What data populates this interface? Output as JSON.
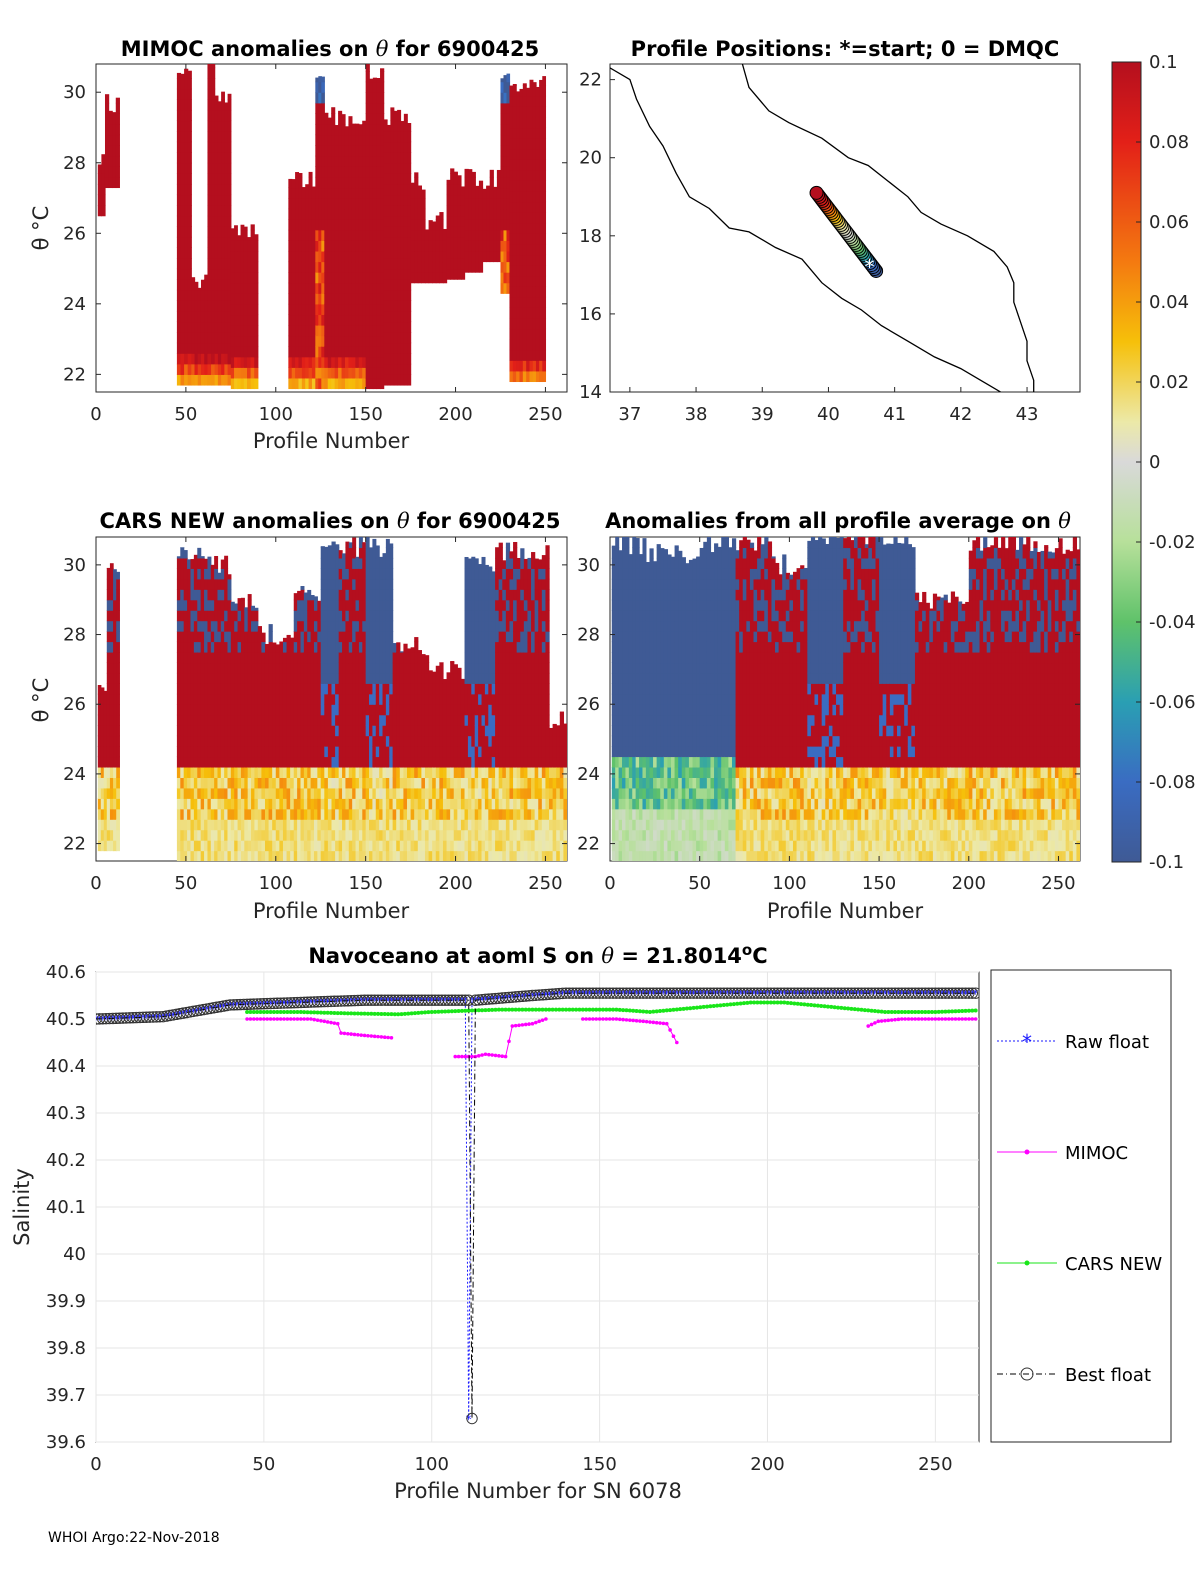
{
  "footer": "WHOI Argo:22-Nov-2018",
  "colors": {
    "pos": "#b40f1e",
    "neg": "#3f5a95",
    "zero": "#d9d9d9",
    "raw": "#1a1aff",
    "mimoc": "#ff00ff",
    "cars": "#19e619",
    "best": "#000000"
  },
  "chart_data": [
    {
      "id": "mimoc",
      "type": "heatmap",
      "title_prefix": "MIMOC anomalies on ",
      "title_symbol": "θ",
      "title_suffix": "  for 6900425",
      "xlabel": "Profile Number",
      "ylabel": "θ °C",
      "xlim": [
        0,
        262
      ],
      "ylim": [
        21.5,
        30.8
      ],
      "xticks": [
        0,
        50,
        100,
        150,
        200,
        250
      ],
      "yticks": [
        22,
        24,
        26,
        28,
        30
      ],
      "columns": [
        {
          "x0": 1,
          "x1": 5,
          "tmin": 26.5,
          "tmax": 28.0,
          "mode": "warm"
        },
        {
          "x0": 5,
          "x1": 13,
          "tmin": 27.3,
          "tmax": 29.7,
          "mode": "warm"
        },
        {
          "x0": 45,
          "x1": 53,
          "tmin": 21.7,
          "tmax": 30.6,
          "mode": "warmbase"
        },
        {
          "x0": 53,
          "x1": 62,
          "tmin": 21.7,
          "tmax": 24.7,
          "mode": "warmbase"
        },
        {
          "x0": 62,
          "x1": 66,
          "tmin": 21.7,
          "tmax": 30.8,
          "mode": "warmbase"
        },
        {
          "x0": 66,
          "x1": 75,
          "tmin": 21.7,
          "tmax": 30.0,
          "mode": "warmbase"
        },
        {
          "x0": 75,
          "x1": 84,
          "tmin": 21.6,
          "tmax": 26.2,
          "mode": "warmbase"
        },
        {
          "x0": 84,
          "x1": 90,
          "tmin": 21.6,
          "tmax": 26.0,
          "mode": "warmbase"
        },
        {
          "x0": 107,
          "x1": 122,
          "tmin": 21.6,
          "tmax": 27.5,
          "mode": "warmbase"
        },
        {
          "x0": 122,
          "x1": 127,
          "tmin": 21.6,
          "tmax": 30.3,
          "mode": "mixed"
        },
        {
          "x0": 127,
          "x1": 150,
          "tmin": 21.6,
          "tmax": 29.3,
          "mode": "warmbase"
        },
        {
          "x0": 150,
          "x1": 160,
          "tmin": 21.6,
          "tmax": 30.5,
          "mode": "warm"
        },
        {
          "x0": 160,
          "x1": 175,
          "tmin": 21.7,
          "tmax": 29.3,
          "mode": "warm"
        },
        {
          "x0": 175,
          "x1": 183,
          "tmin": 24.6,
          "tmax": 27.5,
          "mode": "warm"
        },
        {
          "x0": 183,
          "x1": 195,
          "tmin": 24.6,
          "tmax": 26.4,
          "mode": "warm"
        },
        {
          "x0": 195,
          "x1": 205,
          "tmin": 24.7,
          "tmax": 27.6,
          "mode": "warm"
        },
        {
          "x0": 205,
          "x1": 215,
          "tmin": 24.9,
          "tmax": 27.6,
          "mode": "warm"
        },
        {
          "x0": 215,
          "x1": 225,
          "tmin": 25.2,
          "tmax": 27.5,
          "mode": "warm"
        },
        {
          "x0": 225,
          "x1": 230,
          "tmin": 24.3,
          "tmax": 30.6,
          "mode": "mixed"
        },
        {
          "x0": 230,
          "x1": 243,
          "tmin": 21.8,
          "tmax": 30.2,
          "mode": "warmbase"
        },
        {
          "x0": 243,
          "x1": 250,
          "tmin": 21.8,
          "tmax": 30.4,
          "mode": "warmbase"
        }
      ]
    },
    {
      "id": "positions",
      "type": "scatter",
      "title": "Profile Positions: *=start; 0 = DMQC",
      "xlim": [
        36.7,
        43.8
      ],
      "ylim": [
        14,
        22.4
      ],
      "xticks": [
        37,
        38,
        39,
        40,
        41,
        42,
        43
      ],
      "yticks": [
        14,
        16,
        18,
        20,
        22
      ],
      "start": [
        40.62,
        17.2
      ],
      "track": {
        "lon0": 39.82,
        "lat0": 19.1,
        "lon1": 40.72,
        "lat1": 17.1,
        "n": 40
      },
      "coast_west": [
        [
          36.7,
          22.3
        ],
        [
          37.0,
          22.0
        ],
        [
          37.1,
          21.5
        ],
        [
          37.3,
          20.8
        ],
        [
          37.5,
          20.3
        ],
        [
          37.7,
          19.6
        ],
        [
          37.9,
          19.0
        ],
        [
          38.2,
          18.7
        ],
        [
          38.5,
          18.2
        ],
        [
          38.8,
          18.1
        ],
        [
          39.2,
          17.7
        ],
        [
          39.6,
          17.4
        ],
        [
          39.9,
          16.8
        ],
        [
          40.2,
          16.4
        ],
        [
          40.5,
          16.1
        ],
        [
          40.8,
          15.7
        ],
        [
          41.2,
          15.3
        ],
        [
          41.6,
          14.9
        ],
        [
          42.0,
          14.6
        ],
        [
          42.4,
          14.2
        ],
        [
          42.6,
          14.0
        ]
      ],
      "coast_east": [
        [
          38.7,
          22.4
        ],
        [
          38.8,
          21.8
        ],
        [
          39.1,
          21.2
        ],
        [
          39.4,
          20.9
        ],
        [
          39.9,
          20.5
        ],
        [
          40.3,
          20.0
        ],
        [
          40.6,
          19.8
        ],
        [
          40.9,
          19.4
        ],
        [
          41.2,
          19.0
        ],
        [
          41.4,
          18.6
        ],
        [
          41.7,
          18.3
        ],
        [
          42.1,
          18.0
        ],
        [
          42.5,
          17.6
        ],
        [
          42.7,
          17.2
        ],
        [
          42.8,
          16.8
        ],
        [
          42.8,
          16.3
        ],
        [
          42.9,
          15.8
        ],
        [
          43.0,
          15.3
        ],
        [
          43.0,
          14.8
        ],
        [
          43.1,
          14.3
        ],
        [
          43.1,
          14.0
        ]
      ]
    },
    {
      "id": "cars",
      "type": "heatmap",
      "title_prefix": "CARS NEW anomalies on ",
      "title_symbol": "θ",
      "title_suffix": " for 6900425",
      "xlabel": "Profile Number",
      "ylabel": "θ °C",
      "xlim": [
        0,
        262
      ],
      "ylim": [
        21.5,
        30.8
      ],
      "xticks": [
        0,
        50,
        100,
        150,
        200,
        250
      ],
      "yticks": [
        22,
        24,
        26,
        28,
        30
      ],
      "columns": [
        {
          "x0": 1,
          "x1": 6,
          "tmin": 21.8,
          "tmax": 26.6,
          "mode": "strat"
        },
        {
          "x0": 6,
          "x1": 13,
          "tmin": 21.8,
          "tmax": 29.8,
          "mode": "strat"
        },
        {
          "x0": 45,
          "x1": 62,
          "tmin": 21.5,
          "tmax": 30.3,
          "mode": "strat"
        },
        {
          "x0": 62,
          "x1": 75,
          "tmin": 21.5,
          "tmax": 30.0,
          "mode": "strat"
        },
        {
          "x0": 75,
          "x1": 90,
          "tmin": 21.5,
          "tmax": 29.0,
          "mode": "strat"
        },
        {
          "x0": 90,
          "x1": 110,
          "tmin": 21.5,
          "tmax": 28.0,
          "mode": "strat"
        },
        {
          "x0": 110,
          "x1": 125,
          "tmin": 21.5,
          "tmax": 29.2,
          "mode": "strat"
        },
        {
          "x0": 125,
          "x1": 135,
          "tmin": 21.5,
          "tmax": 30.4,
          "mode": "bluetop"
        },
        {
          "x0": 135,
          "x1": 150,
          "tmin": 21.5,
          "tmax": 30.5,
          "mode": "strat"
        },
        {
          "x0": 150,
          "x1": 165,
          "tmin": 21.5,
          "tmax": 30.5,
          "mode": "bluetop"
        },
        {
          "x0": 165,
          "x1": 185,
          "tmin": 21.5,
          "tmax": 27.7,
          "mode": "strat"
        },
        {
          "x0": 185,
          "x1": 205,
          "tmin": 21.5,
          "tmax": 27.0,
          "mode": "strat"
        },
        {
          "x0": 205,
          "x1": 222,
          "tmin": 21.5,
          "tmax": 30.0,
          "mode": "bluetop"
        },
        {
          "x0": 222,
          "x1": 240,
          "tmin": 21.5,
          "tmax": 30.4,
          "mode": "strat"
        },
        {
          "x0": 240,
          "x1": 252,
          "tmin": 21.5,
          "tmax": 30.4,
          "mode": "strat"
        },
        {
          "x0": 252,
          "x1": 262,
          "tmin": 21.5,
          "tmax": 25.6,
          "mode": "strat"
        }
      ]
    },
    {
      "id": "allavg",
      "type": "heatmap",
      "title_prefix": "Anomalies from all profile average on ",
      "title_symbol": "θ",
      "title_suffix": "",
      "xlabel": "Profile Number",
      "ylabel": "",
      "xlim": [
        0,
        262
      ],
      "ylim": [
        21.5,
        30.8
      ],
      "xticks": [
        0,
        50,
        100,
        150,
        200,
        250
      ],
      "yticks": [
        22,
        24,
        26,
        28,
        30
      ],
      "columns": [
        {
          "x0": 1,
          "x1": 20,
          "tmin": 21.5,
          "tmax": 30.6,
          "mode": "cool"
        },
        {
          "x0": 20,
          "x1": 50,
          "tmin": 21.5,
          "tmax": 30.3,
          "mode": "cool"
        },
        {
          "x0": 50,
          "x1": 70,
          "tmin": 21.5,
          "tmax": 30.6,
          "mode": "cool"
        },
        {
          "x0": 70,
          "x1": 90,
          "tmin": 21.5,
          "tmax": 30.7,
          "mode": "strat"
        },
        {
          "x0": 90,
          "x1": 110,
          "tmin": 21.5,
          "tmax": 30.0,
          "mode": "strat"
        },
        {
          "x0": 110,
          "x1": 130,
          "tmin": 21.5,
          "tmax": 30.7,
          "mode": "bluetop"
        },
        {
          "x0": 130,
          "x1": 150,
          "tmin": 21.5,
          "tmax": 30.7,
          "mode": "strat"
        },
        {
          "x0": 150,
          "x1": 170,
          "tmin": 21.5,
          "tmax": 30.7,
          "mode": "bluetop"
        },
        {
          "x0": 170,
          "x1": 200,
          "tmin": 21.5,
          "tmax": 29.0,
          "mode": "strat"
        },
        {
          "x0": 200,
          "x1": 230,
          "tmin": 21.5,
          "tmax": 30.7,
          "mode": "strat"
        },
        {
          "x0": 230,
          "x1": 262,
          "tmin": 21.5,
          "tmax": 30.6,
          "mode": "strat"
        }
      ]
    },
    {
      "id": "salinity",
      "type": "line",
      "title_prefix": "Navoceano at aoml S on ",
      "title_symbol": "θ",
      "title_mid": " = 21.8014",
      "title_sup": "o",
      "title_end": "C",
      "xlabel": "Profile Number for SN 6078",
      "ylabel": "Salinity",
      "xlim": [
        0,
        263
      ],
      "ylim": [
        39.6,
        40.6
      ],
      "xticks": [
        0,
        50,
        100,
        150,
        200,
        250
      ],
      "yticks": [
        39.6,
        39.7,
        39.8,
        39.9,
        40,
        40.1,
        40.2,
        40.3,
        40.4,
        40.5,
        40.6
      ],
      "ytick_labels": [
        "39.6",
        "39.7",
        "39.8",
        "39.9",
        "40",
        "40.1",
        "40.2",
        "40.3",
        "40.4",
        "40.5",
        "40.6"
      ],
      "series": [
        {
          "name": "Raw float",
          "style": "raw",
          "points": [
            [
              0,
              40.5
            ],
            [
              20,
              40.505
            ],
            [
              40,
              40.53
            ],
            [
              60,
              40.535
            ],
            [
              80,
              40.54
            ],
            [
              100,
              40.54
            ],
            [
              110,
              40.54
            ],
            [
              111,
              39.65
            ],
            [
              112,
              40.54
            ],
            [
              130,
              40.55
            ],
            [
              140,
              40.555
            ],
            [
              160,
              40.555
            ],
            [
              200,
              40.555
            ],
            [
              230,
              40.555
            ],
            [
              262,
              40.555
            ]
          ]
        },
        {
          "name": "MIMOC",
          "style": "mimoc",
          "segments": [
            [
              [
                45,
                40.5
              ],
              [
                55,
                40.5
              ],
              [
                64,
                40.5
              ],
              [
                72,
                40.49
              ],
              [
                73,
                40.47
              ],
              [
                80,
                40.465
              ],
              [
                88,
                40.46
              ]
            ],
            [
              [
                107,
                40.42
              ],
              [
                113,
                40.42
              ],
              [
                116,
                40.425
              ],
              [
                122,
                40.42
              ],
              [
                124,
                40.485
              ],
              [
                130,
                40.49
              ],
              [
                134,
                40.5
              ]
            ],
            [
              [
                145,
                40.5
              ],
              [
                155,
                40.5
              ],
              [
                163,
                40.495
              ],
              [
                170,
                40.49
              ],
              [
                173,
                40.45
              ]
            ],
            [
              [
                230,
                40.485
              ],
              [
                233,
                40.495
              ],
              [
                240,
                40.5
              ],
              [
                262,
                40.5
              ]
            ]
          ]
        },
        {
          "name": "CARS NEW",
          "style": "cars",
          "points": [
            [
              45,
              40.515
            ],
            [
              60,
              40.515
            ],
            [
              75,
              40.512
            ],
            [
              90,
              40.51
            ],
            [
              100,
              40.515
            ],
            [
              120,
              40.52
            ],
            [
              140,
              40.52
            ],
            [
              155,
              40.52
            ],
            [
              165,
              40.515
            ],
            [
              180,
              40.525
            ],
            [
              195,
              40.535
            ],
            [
              205,
              40.535
            ],
            [
              220,
              40.525
            ],
            [
              235,
              40.515
            ],
            [
              250,
              40.515
            ],
            [
              262,
              40.518
            ]
          ]
        },
        {
          "name": "Best float",
          "style": "best",
          "points": [
            [
              0,
              40.5
            ],
            [
              20,
              40.505
            ],
            [
              40,
              40.53
            ],
            [
              60,
              40.535
            ],
            [
              80,
              40.54
            ],
            [
              100,
              40.54
            ],
            [
              110,
              40.54
            ],
            [
              111,
              40.54
            ],
            [
              112,
              39.65
            ],
            [
              113,
              40.54
            ],
            [
              130,
              40.55
            ],
            [
              140,
              40.555
            ],
            [
              160,
              40.555
            ],
            [
              200,
              40.555
            ],
            [
              230,
              40.555
            ],
            [
              262,
              40.555
            ]
          ]
        }
      ]
    }
  ],
  "colorbar": {
    "labels": [
      "0.1",
      "0.08",
      "0.06",
      "0.04",
      "0.02",
      "0",
      "-0.02",
      "-0.04",
      "-0.06",
      "-0.08",
      "-0.1"
    ],
    "min": -0.1,
    "max": 0.1
  }
}
